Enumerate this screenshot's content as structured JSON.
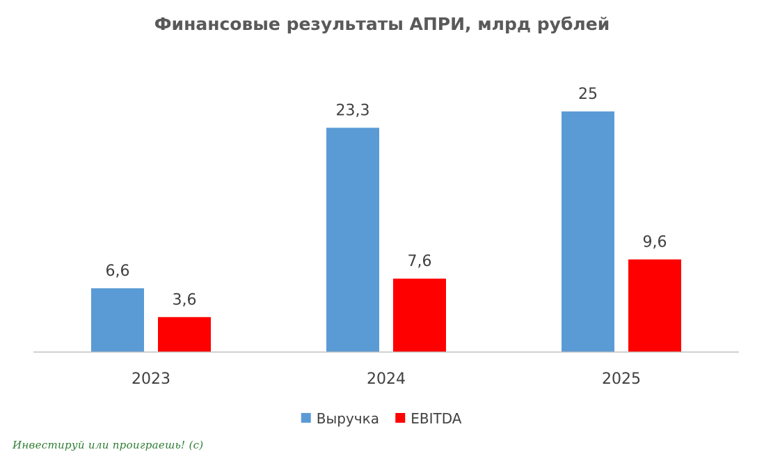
{
  "chart_data": {
    "type": "bar",
    "title": "Финансовые результаты АПРИ, млрд рублей",
    "categories": [
      "2023",
      "2024",
      "2025"
    ],
    "series": [
      {
        "name": "Выручка",
        "values": [
          6.6,
          23.3,
          25
        ],
        "labels": [
          "6,6",
          "23,3",
          "25"
        ],
        "color": "#5B9BD5"
      },
      {
        "name": "EBITDA",
        "values": [
          3.6,
          7.6,
          9.6
        ],
        "labels": [
          "3,6",
          "7,6",
          "9,6"
        ],
        "color": "#FF0000"
      }
    ],
    "ylim": [
      0,
      25
    ],
    "grid": false,
    "legend_position": "bottom",
    "axis_color": "#BFBFBF",
    "text_color": "#404040"
  },
  "watermark": "Инвестируй или проиграешь! (с)"
}
